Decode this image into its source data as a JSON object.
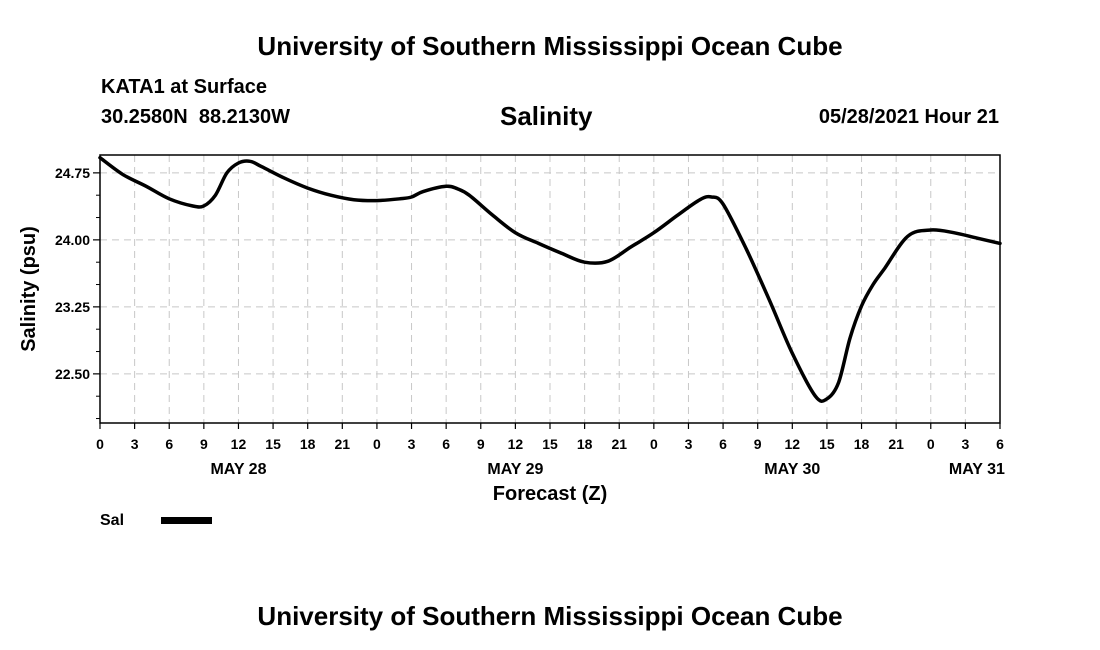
{
  "page": {
    "header_title": "University of Southern Mississippi Ocean Cube",
    "footer_title": "University of Southern Mississippi Ocean Cube",
    "station": "KATA1 at Surface",
    "coordinates": "30.2580N  88.2130W",
    "chart_title": "Salinity",
    "datetime": "05/28/2021 Hour 21"
  },
  "legend": {
    "label": "Sal",
    "color": "#000000"
  },
  "chart_data": {
    "type": "line",
    "title": "Salinity",
    "xlabel": "Forecast (Z)",
    "ylabel": "Salinity (psu)",
    "xlim": [
      0,
      78
    ],
    "ylim": [
      21.95,
      24.95
    ],
    "yticks": [
      22.5,
      23.25,
      24.0,
      24.75
    ],
    "ytick_labels": [
      "22.50",
      "23.25",
      "24.00",
      "24.75"
    ],
    "xticks": [
      0,
      3,
      6,
      9,
      12,
      15,
      18,
      21,
      24,
      27,
      30,
      33,
      36,
      39,
      42,
      45,
      48,
      51,
      54,
      57,
      60,
      63,
      66,
      69,
      72,
      75,
      78
    ],
    "xtick_labels": [
      "0",
      "3",
      "6",
      "9",
      "12",
      "15",
      "18",
      "21",
      "0",
      "3",
      "6",
      "9",
      "12",
      "15",
      "18",
      "21",
      "0",
      "3",
      "6",
      "9",
      "12",
      "15",
      "18",
      "21",
      "0",
      "3",
      "6"
    ],
    "day_labels": [
      {
        "x": 12,
        "label": "MAY 28"
      },
      {
        "x": 36,
        "label": "MAY 29"
      },
      {
        "x": 60,
        "label": "MAY 30"
      },
      {
        "x": 76,
        "label": "MAY 31"
      }
    ],
    "grid": true,
    "series": [
      {
        "name": "Sal",
        "x": [
          0,
          2,
          4,
          6,
          8,
          9,
          10,
          11,
          12,
          13,
          14,
          16,
          18,
          20,
          22,
          24,
          26,
          27,
          28,
          30,
          31,
          32,
          34,
          36,
          38,
          40,
          42,
          44,
          46,
          48,
          50,
          52,
          53,
          54,
          56,
          58,
          60,
          62,
          63,
          64,
          65,
          66,
          67,
          68,
          70,
          72,
          74,
          76,
          78
        ],
        "values": [
          24.92,
          24.73,
          24.6,
          24.46,
          24.38,
          24.38,
          24.5,
          24.75,
          24.86,
          24.88,
          24.82,
          24.69,
          24.58,
          24.5,
          24.45,
          24.44,
          24.46,
          24.48,
          24.54,
          24.6,
          24.57,
          24.5,
          24.28,
          24.08,
          23.96,
          23.85,
          23.75,
          23.76,
          23.92,
          24.08,
          24.27,
          24.45,
          24.48,
          24.4,
          23.9,
          23.33,
          22.73,
          22.25,
          22.22,
          22.4,
          22.9,
          23.26,
          23.5,
          23.68,
          24.04,
          24.11,
          24.08,
          24.02,
          23.96
        ]
      }
    ]
  }
}
